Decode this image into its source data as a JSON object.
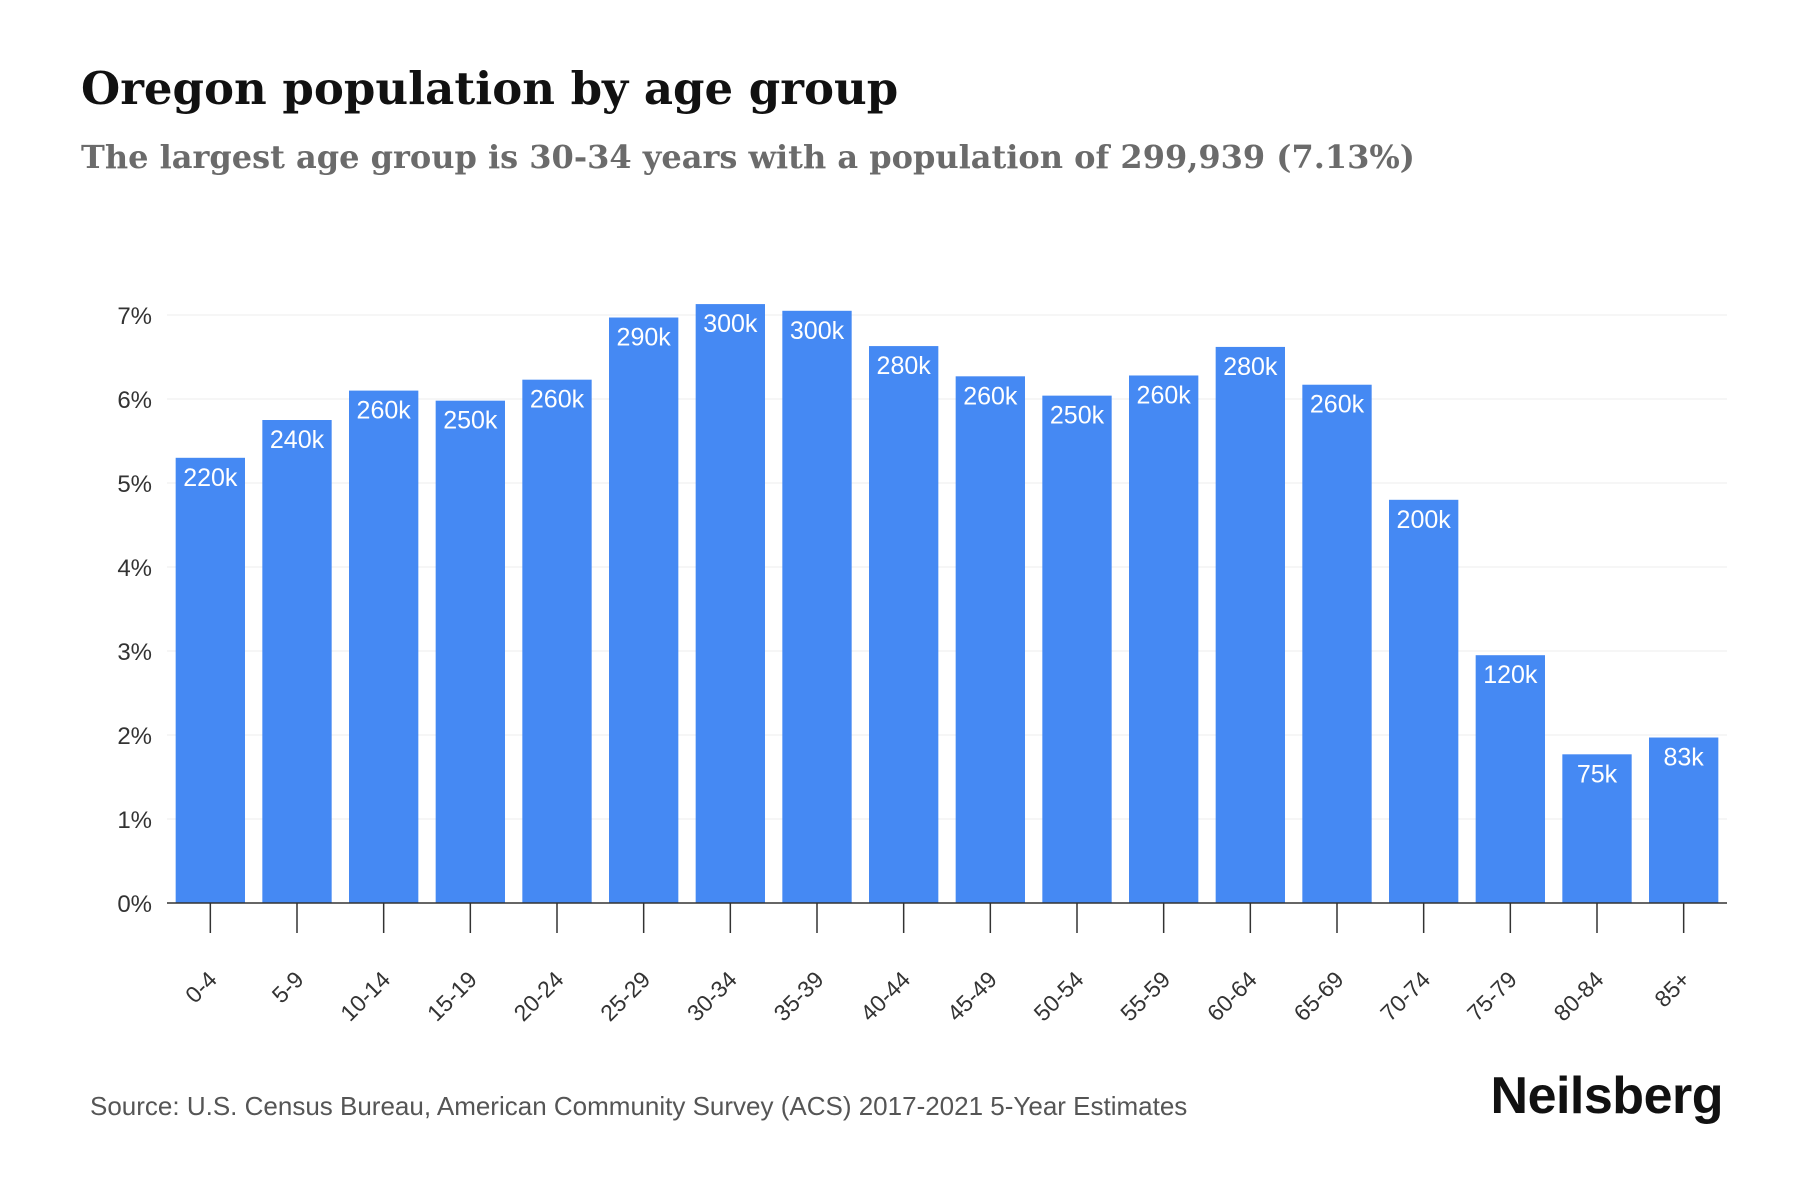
{
  "header": {
    "title": "Oregon population by age group",
    "subtitle": "The largest age group is 30-34 years with a population of 299,939 (7.13%)"
  },
  "footer": {
    "source": "Source: U.S. Census Bureau, American Community Survey (ACS) 2017-2021 5-Year Estimates",
    "brand": "Neilsberg"
  },
  "colors": {
    "bar": "#4589F3",
    "bar_label": "#ffffff",
    "grid": "#ececec",
    "axis": "#333333",
    "tick_text": "#333333"
  },
  "chart_data": {
    "type": "bar",
    "title": "Oregon population by age group",
    "subtitle": "The largest age group is 30-34 years with a population of 299,939 (7.13%)",
    "xlabel": "",
    "ylabel": "",
    "categories": [
      "0-4",
      "5-9",
      "10-14",
      "15-19",
      "20-24",
      "25-29",
      "30-34",
      "35-39",
      "40-44",
      "45-49",
      "50-54",
      "55-59",
      "60-64",
      "65-69",
      "70-74",
      "75-79",
      "80-84",
      "85+"
    ],
    "values": [
      5.3,
      5.75,
      6.1,
      5.98,
      6.23,
      6.97,
      7.13,
      7.05,
      6.63,
      6.27,
      6.04,
      6.28,
      6.62,
      6.17,
      4.8,
      2.95,
      1.77,
      1.97
    ],
    "value_unit": "%",
    "data_labels": [
      "220k",
      "240k",
      "260k",
      "250k",
      "260k",
      "290k",
      "300k",
      "300k",
      "280k",
      "260k",
      "250k",
      "260k",
      "280k",
      "260k",
      "200k",
      "120k",
      "75k",
      "83k"
    ],
    "yticks": [
      "0%",
      "1%",
      "2%",
      "3%",
      "4%",
      "5%",
      "6%",
      "7%"
    ],
    "ylim": [
      0,
      7
    ],
    "grid": true,
    "legend": "none"
  }
}
